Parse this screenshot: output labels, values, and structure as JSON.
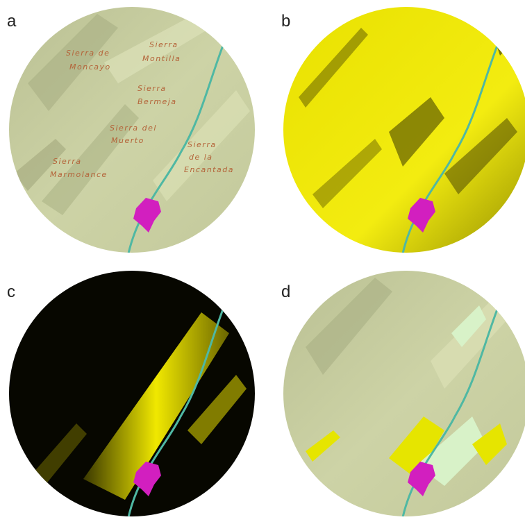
{
  "panels": [
    {
      "letter": "a",
      "labels": [
        {
          "lines": [
            "Sierra de",
            "Moncayo"
          ]
        },
        {
          "lines": [
            "Sierra",
            "Montilla"
          ]
        },
        {
          "lines": [
            "Sierra",
            "Bermeja"
          ]
        },
        {
          "lines": [
            "Sierra del",
            "Muerto"
          ]
        },
        {
          "lines": [
            "Sierra",
            "de la",
            "Encantada"
          ]
        },
        {
          "lines": [
            "Sierra",
            "Marmolance"
          ]
        }
      ]
    },
    {
      "letter": "b"
    },
    {
      "letter": "c"
    },
    {
      "letter": "d"
    }
  ]
}
